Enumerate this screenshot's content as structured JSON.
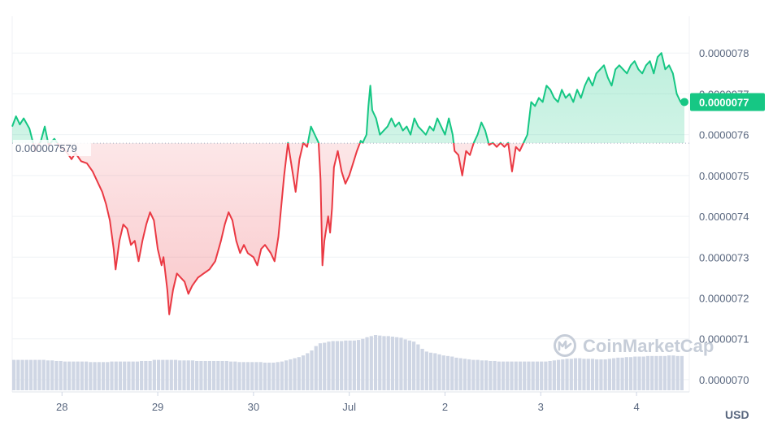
{
  "chart_data": {
    "type": "area",
    "currency_label": "USD",
    "watermark": "CoinMarketCap",
    "baseline_value": 7.579e-07,
    "baseline_label": "0.000007579",
    "current_price_label": "0.0000077",
    "current_value": 7.68e-07,
    "y_ticks": [
      "0.0000078",
      "0.0000077",
      "0.0000076",
      "0.0000075",
      "0.0000074",
      "0.0000073",
      "0.0000072",
      "0.0000071",
      "0.0000070"
    ],
    "y_tick_values": [
      7.8e-07,
      7.7e-07,
      7.6e-07,
      7.5e-07,
      7.4e-07,
      7.3e-07,
      7.2e-07,
      7.1e-07,
      7e-07
    ],
    "x_ticks": [
      {
        "label": "28",
        "t": 0.52
      },
      {
        "label": "29",
        "t": 1.52
      },
      {
        "label": "30",
        "t": 2.52
      },
      {
        "label": "Jul",
        "t": 3.52
      },
      {
        "label": "2",
        "t": 4.52
      },
      {
        "label": "3",
        "t": 5.52
      },
      {
        "label": "4",
        "t": 6.52
      }
    ],
    "x_range": [
      0,
      7.02
    ],
    "y_range": [
      6.97e-07,
      7.89e-07
    ],
    "colors": {
      "up": "#16c784",
      "down": "#ea3943",
      "grid": "#eff2f5",
      "baseline": "#a6b0c3",
      "volume": "#cfd6e4"
    },
    "series": [
      {
        "values": [
          [
            0.0,
            7.62e-07
          ],
          [
            0.04,
            7.645e-07
          ],
          [
            0.08,
            7.625e-07
          ],
          [
            0.12,
            7.64e-07
          ],
          [
            0.18,
            7.615e-07
          ],
          [
            0.24,
            7.56e-07
          ],
          [
            0.3,
            7.585e-07
          ],
          [
            0.34,
            7.62e-07
          ],
          [
            0.38,
            7.575e-07
          ],
          [
            0.44,
            7.59e-07
          ],
          [
            0.5,
            7.57e-07
          ],
          [
            0.56,
            7.56e-07
          ],
          [
            0.62,
            7.54e-07
          ],
          [
            0.66,
            7.555e-07
          ],
          [
            0.72,
            7.535e-07
          ],
          [
            0.78,
            7.53e-07
          ],
          [
            0.84,
            7.51e-07
          ],
          [
            0.9,
            7.48e-07
          ],
          [
            0.94,
            7.46e-07
          ],
          [
            0.98,
            7.43e-07
          ],
          [
            1.02,
            7.39e-07
          ],
          [
            1.06,
            7.32e-07
          ],
          [
            1.08,
            7.27e-07
          ],
          [
            1.12,
            7.34e-07
          ],
          [
            1.16,
            7.38e-07
          ],
          [
            1.2,
            7.37e-07
          ],
          [
            1.24,
            7.33e-07
          ],
          [
            1.28,
            7.34e-07
          ],
          [
            1.32,
            7.29e-07
          ],
          [
            1.36,
            7.34e-07
          ],
          [
            1.4,
            7.38e-07
          ],
          [
            1.44,
            7.41e-07
          ],
          [
            1.48,
            7.39e-07
          ],
          [
            1.52,
            7.32e-07
          ],
          [
            1.56,
            7.28e-07
          ],
          [
            1.58,
            7.3e-07
          ],
          [
            1.62,
            7.22e-07
          ],
          [
            1.64,
            7.16e-07
          ],
          [
            1.68,
            7.22e-07
          ],
          [
            1.72,
            7.26e-07
          ],
          [
            1.76,
            7.25e-07
          ],
          [
            1.8,
            7.24e-07
          ],
          [
            1.84,
            7.21e-07
          ],
          [
            1.88,
            7.23e-07
          ],
          [
            1.94,
            7.25e-07
          ],
          [
            2.0,
            7.26e-07
          ],
          [
            2.06,
            7.27e-07
          ],
          [
            2.12,
            7.29e-07
          ],
          [
            2.18,
            7.34e-07
          ],
          [
            2.22,
            7.38e-07
          ],
          [
            2.26,
            7.41e-07
          ],
          [
            2.3,
            7.39e-07
          ],
          [
            2.34,
            7.34e-07
          ],
          [
            2.38,
            7.31e-07
          ],
          [
            2.42,
            7.33e-07
          ],
          [
            2.46,
            7.31e-07
          ],
          [
            2.52,
            7.3e-07
          ],
          [
            2.56,
            7.28e-07
          ],
          [
            2.6,
            7.32e-07
          ],
          [
            2.64,
            7.33e-07
          ],
          [
            2.7,
            7.31e-07
          ],
          [
            2.74,
            7.29e-07
          ],
          [
            2.78,
            7.35e-07
          ],
          [
            2.8,
            7.4e-07
          ],
          [
            2.84,
            7.5e-07
          ],
          [
            2.88,
            7.58e-07
          ],
          [
            2.92,
            7.52e-07
          ],
          [
            2.96,
            7.46e-07
          ],
          [
            3.0,
            7.54e-07
          ],
          [
            3.04,
            7.58e-07
          ],
          [
            3.08,
            7.57e-07
          ],
          [
            3.12,
            7.62e-07
          ],
          [
            3.16,
            7.6e-07
          ],
          [
            3.2,
            7.58e-07
          ],
          [
            3.22,
            7.49e-07
          ],
          [
            3.24,
            7.28e-07
          ],
          [
            3.26,
            7.34e-07
          ],
          [
            3.3,
            7.4e-07
          ],
          [
            3.32,
            7.36e-07
          ],
          [
            3.34,
            7.42e-07
          ],
          [
            3.36,
            7.52e-07
          ],
          [
            3.4,
            7.56e-07
          ],
          [
            3.44,
            7.51e-07
          ],
          [
            3.48,
            7.48e-07
          ],
          [
            3.52,
            7.5e-07
          ],
          [
            3.56,
            7.53e-07
          ],
          [
            3.6,
            7.56e-07
          ],
          [
            3.64,
            7.585e-07
          ],
          [
            3.66,
            7.58e-07
          ],
          [
            3.7,
            7.6e-07
          ],
          [
            3.72,
            7.67e-07
          ],
          [
            3.74,
            7.72e-07
          ],
          [
            3.76,
            7.66e-07
          ],
          [
            3.8,
            7.64e-07
          ],
          [
            3.84,
            7.6e-07
          ],
          [
            3.88,
            7.61e-07
          ],
          [
            3.92,
            7.62e-07
          ],
          [
            3.96,
            7.64e-07
          ],
          [
            4.0,
            7.62e-07
          ],
          [
            4.04,
            7.63e-07
          ],
          [
            4.08,
            7.61e-07
          ],
          [
            4.12,
            7.62e-07
          ],
          [
            4.16,
            7.6e-07
          ],
          [
            4.2,
            7.64e-07
          ],
          [
            4.24,
            7.62e-07
          ],
          [
            4.28,
            7.61e-07
          ],
          [
            4.32,
            7.6e-07
          ],
          [
            4.36,
            7.62e-07
          ],
          [
            4.4,
            7.61e-07
          ],
          [
            4.44,
            7.64e-07
          ],
          [
            4.48,
            7.62e-07
          ],
          [
            4.52,
            7.6e-07
          ],
          [
            4.56,
            7.64e-07
          ],
          [
            4.6,
            7.6e-07
          ],
          [
            4.62,
            7.56e-07
          ],
          [
            4.66,
            7.55e-07
          ],
          [
            4.7,
            7.5e-07
          ],
          [
            4.74,
            7.56e-07
          ],
          [
            4.78,
            7.55e-07
          ],
          [
            4.82,
            7.58e-07
          ],
          [
            4.86,
            7.6e-07
          ],
          [
            4.9,
            7.63e-07
          ],
          [
            4.94,
            7.61e-07
          ],
          [
            4.98,
            7.575e-07
          ],
          [
            5.02,
            7.58e-07
          ],
          [
            5.06,
            7.57e-07
          ],
          [
            5.1,
            7.58e-07
          ],
          [
            5.14,
            7.57e-07
          ],
          [
            5.18,
            7.58e-07
          ],
          [
            5.22,
            7.51e-07
          ],
          [
            5.26,
            7.57e-07
          ],
          [
            5.3,
            7.56e-07
          ],
          [
            5.34,
            7.58e-07
          ],
          [
            5.38,
            7.6e-07
          ],
          [
            5.42,
            7.68e-07
          ],
          [
            5.46,
            7.67e-07
          ],
          [
            5.5,
            7.69e-07
          ],
          [
            5.54,
            7.68e-07
          ],
          [
            5.58,
            7.72e-07
          ],
          [
            5.62,
            7.71e-07
          ],
          [
            5.66,
            7.69e-07
          ],
          [
            5.7,
            7.68e-07
          ],
          [
            5.74,
            7.71e-07
          ],
          [
            5.78,
            7.69e-07
          ],
          [
            5.82,
            7.7e-07
          ],
          [
            5.86,
            7.68e-07
          ],
          [
            5.9,
            7.71e-07
          ],
          [
            5.94,
            7.69e-07
          ],
          [
            5.98,
            7.72e-07
          ],
          [
            6.02,
            7.74e-07
          ],
          [
            6.06,
            7.72e-07
          ],
          [
            6.1,
            7.75e-07
          ],
          [
            6.14,
            7.76e-07
          ],
          [
            6.18,
            7.77e-07
          ],
          [
            6.22,
            7.74e-07
          ],
          [
            6.26,
            7.72e-07
          ],
          [
            6.3,
            7.76e-07
          ],
          [
            6.34,
            7.77e-07
          ],
          [
            6.38,
            7.76e-07
          ],
          [
            6.42,
            7.75e-07
          ],
          [
            6.46,
            7.77e-07
          ],
          [
            6.5,
            7.78e-07
          ],
          [
            6.54,
            7.76e-07
          ],
          [
            6.58,
            7.75e-07
          ],
          [
            6.62,
            7.77e-07
          ],
          [
            6.66,
            7.78e-07
          ],
          [
            6.7,
            7.75e-07
          ],
          [
            6.74,
            7.79e-07
          ],
          [
            6.78,
            7.8e-07
          ],
          [
            6.82,
            7.76e-07
          ],
          [
            6.86,
            7.77e-07
          ],
          [
            6.9,
            7.75e-07
          ],
          [
            6.94,
            7.7e-07
          ],
          [
            6.98,
            7.68e-07
          ],
          [
            7.02,
            7.68e-07
          ]
        ]
      }
    ],
    "volume_values": [
      0.55,
      0.55,
      0.55,
      0.55,
      0.55,
      0.55,
      0.55,
      0.55,
      0.54,
      0.54,
      0.53,
      0.53,
      0.52,
      0.52,
      0.52,
      0.52,
      0.52,
      0.52,
      0.51,
      0.51,
      0.51,
      0.51,
      0.51,
      0.52,
      0.52,
      0.52,
      0.52,
      0.52,
      0.52,
      0.52,
      0.53,
      0.53,
      0.53,
      0.55,
      0.55,
      0.55,
      0.55,
      0.55,
      0.55,
      0.54,
      0.54,
      0.54,
      0.54,
      0.53,
      0.53,
      0.53,
      0.53,
      0.53,
      0.53,
      0.53,
      0.53,
      0.52,
      0.52,
      0.51,
      0.51,
      0.51,
      0.51,
      0.51,
      0.51,
      0.5,
      0.5,
      0.5,
      0.51,
      0.52,
      0.54,
      0.56,
      0.58,
      0.6,
      0.63,
      0.67,
      0.72,
      0.8,
      0.85,
      0.86,
      0.88,
      0.89,
      0.89,
      0.89,
      0.9,
      0.9,
      0.9,
      0.91,
      0.93,
      0.96,
      0.98,
      1.0,
      0.99,
      0.98,
      0.98,
      0.97,
      0.96,
      0.95,
      0.92,
      0.9,
      0.88,
      0.83,
      0.75,
      0.7,
      0.68,
      0.67,
      0.65,
      0.63,
      0.62,
      0.61,
      0.59,
      0.58,
      0.57,
      0.56,
      0.55,
      0.55,
      0.54,
      0.54,
      0.53,
      0.53,
      0.52,
      0.52,
      0.52,
      0.52,
      0.52,
      0.52,
      0.52,
      0.52,
      0.52,
      0.52,
      0.52,
      0.52,
      0.53,
      0.54,
      0.55,
      0.56,
      0.57,
      0.57,
      0.58,
      0.58,
      0.57,
      0.57,
      0.57,
      0.56,
      0.56,
      0.56,
      0.57,
      0.58,
      0.59,
      0.59,
      0.6,
      0.6,
      0.61,
      0.61,
      0.61,
      0.62,
      0.62,
      0.62,
      0.62,
      0.62,
      0.63,
      0.63,
      0.62,
      0.62
    ]
  }
}
